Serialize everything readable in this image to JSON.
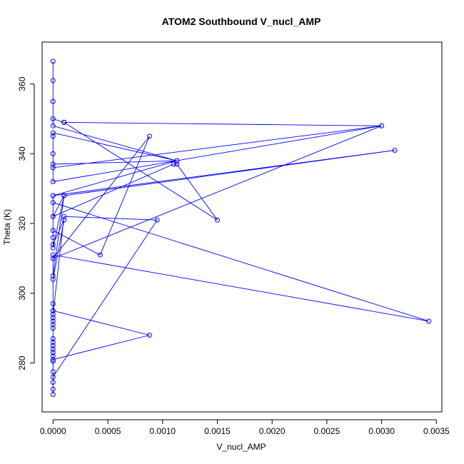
{
  "chart_data": {
    "type": "line",
    "title": "ATOM2 Southbound V_nucl_AMP",
    "xlabel": "V_nucl_AMP",
    "ylabel": "Theta (K)",
    "xlim": [
      -0.0001,
      0.00355
    ],
    "ylim": [
      266,
      372
    ],
    "x_ticks": [
      0.0,
      0.0005,
      0.001,
      0.0015,
      0.002,
      0.0025,
      0.003,
      0.0035
    ],
    "x_tick_labels": [
      "0.0000",
      "0.0005",
      "0.0010",
      "0.0015",
      "0.0020",
      "0.0025",
      "0.0030",
      "0.0035"
    ],
    "y_ticks": [
      280,
      300,
      320,
      340,
      360
    ],
    "y_tick_labels": [
      "280",
      "300",
      "320",
      "340",
      "360"
    ],
    "grid": false,
    "markers": "open-circle",
    "series_color": "#0000ff",
    "series": [
      {
        "x": [
          0,
          0,
          0,
          0,
          0,
          0,
          0,
          0,
          0,
          0,
          0,
          0,
          0,
          0.00088,
          0,
          0,
          0,
          0,
          0,
          0,
          0,
          0.0001,
          0.00095,
          0,
          0,
          0.0001,
          0,
          0,
          0,
          0.00043,
          0.00088,
          0,
          0.003,
          0.0001,
          0,
          0.0001,
          0.0001,
          0.0015,
          0.00113,
          0.0011,
          0,
          0,
          0.00343,
          0,
          0,
          0.0001,
          0,
          0,
          0,
          0.0001,
          0.00312,
          0,
          0.00113,
          0,
          0,
          0,
          0.003,
          0,
          0,
          0,
          0.00113,
          0,
          0,
          0,
          0
        ],
        "y": [
          271,
          272.5,
          274.5,
          277.5,
          280.5,
          283,
          285,
          287,
          291,
          293,
          295,
          297,
          295,
          288,
          281,
          282,
          284,
          286,
          290,
          292,
          294,
          322,
          321,
          276,
          304,
          321,
          314,
          316,
          318,
          311,
          345,
          310,
          348,
          349,
          350,
          349,
          349,
          321,
          337,
          337,
          322,
          326,
          292,
          311,
          305,
          328,
          313,
          328,
          322,
          328,
          341,
          328,
          338,
          337,
          340,
          332,
          348,
          336,
          345,
          346,
          338,
          348,
          355,
          361,
          366.5
        ]
      }
    ]
  }
}
